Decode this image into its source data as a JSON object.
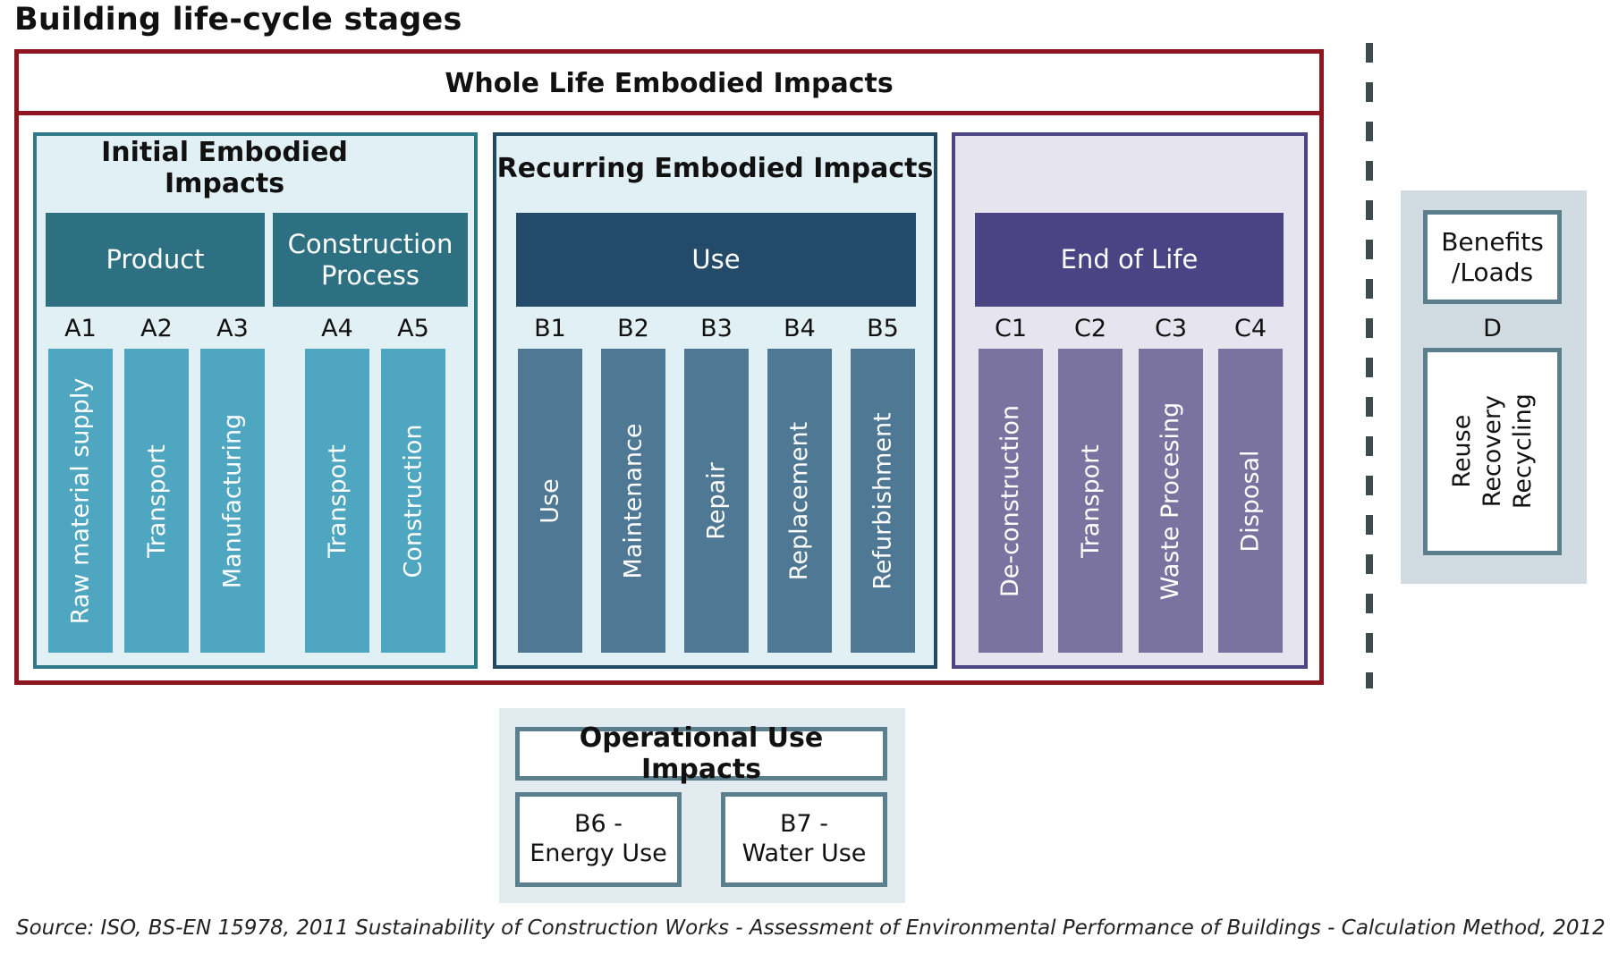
{
  "title": "Building life-cycle stages",
  "whole_life": "Whole Life Embodied Impacts",
  "groups": {
    "initial": "Initial Embodied Impacts",
    "recurring": "Recurring Embodied Impacts",
    "end_of_life": ""
  },
  "stages": {
    "product": "Product",
    "construction_process": "Construction Process",
    "use": "Use",
    "end_of_life": "End of Life"
  },
  "modules": {
    "a": [
      {
        "code": "A1",
        "label": "Raw material supply"
      },
      {
        "code": "A2",
        "label": "Transport"
      },
      {
        "code": "A3",
        "label": "Manufacturing"
      },
      {
        "code": "A4",
        "label": "Transport"
      },
      {
        "code": "A5",
        "label": "Construction"
      }
    ],
    "b": [
      {
        "code": "B1",
        "label": "Use"
      },
      {
        "code": "B2",
        "label": "Maintenance"
      },
      {
        "code": "B3",
        "label": "Repair"
      },
      {
        "code": "B4",
        "label": "Replacement"
      },
      {
        "code": "B5",
        "label": "Refurbishment"
      }
    ],
    "c": [
      {
        "code": "C1",
        "label": "De-construction"
      },
      {
        "code": "C2",
        "label": "Transport"
      },
      {
        "code": "C3",
        "label": "Waste Procesing"
      },
      {
        "code": "C4",
        "label": "Disposal"
      }
    ]
  },
  "beyond": {
    "label_line1": "Benefits",
    "label_line2": "/Loads",
    "code": "D",
    "items": [
      "Reuse",
      "Recovery",
      "Recycling"
    ]
  },
  "operational": {
    "title": "Operational Use Impacts",
    "b6_line1": "B6 -",
    "b6_line2": "Energy Use",
    "b7_line1": "B7 -",
    "b7_line2": "Water Use"
  },
  "source": "Source: ISO, BS-EN 15978, 2011 Sustainability of Construction Works - Assessment of Environmental Performance of Buildings - Calculation Method, 2012",
  "colors": {
    "whole_frame": "#8e1620",
    "initial_border": "#2f7a88",
    "recurring_border": "#234a63",
    "eol_border": "#4c4583",
    "product_header": "#2c7082",
    "use_header": "#234a68",
    "eol_header": "#4c4384",
    "a_columns": "#4fa6c0",
    "b_columns": "#4f7895",
    "c_columns": "#7b739f"
  }
}
